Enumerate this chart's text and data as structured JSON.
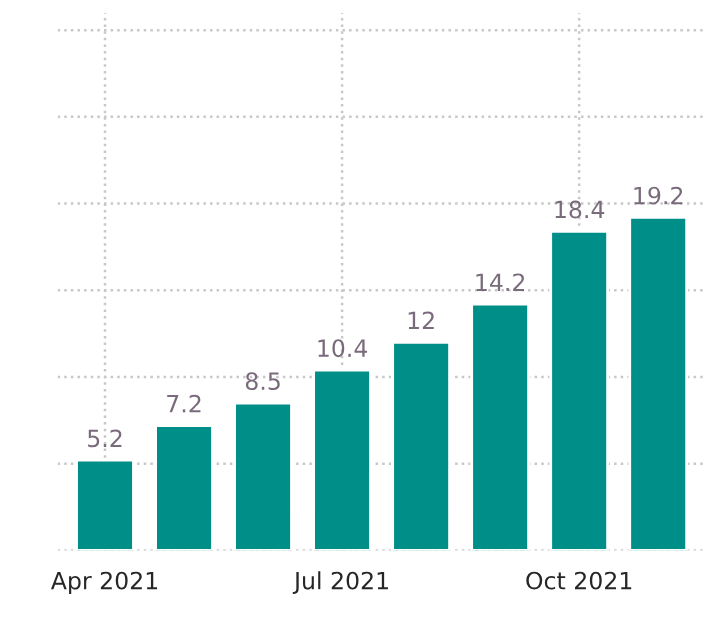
{
  "chart_data": {
    "type": "bar",
    "categories": [
      "Apr 2021",
      null,
      null,
      "Jul 2021",
      null,
      null,
      "Oct 2021",
      null
    ],
    "values": [
      5.2,
      7.2,
      8.5,
      10.4,
      12,
      14.2,
      18.4,
      19.2
    ],
    "color": "#008f88",
    "data_labels": true,
    "ylim": [
      0,
      31
    ],
    "yticks": [
      {
        "value": 0,
        "label": null
      },
      {
        "value": 5,
        "label": null
      },
      {
        "value": 10,
        "label": null
      },
      {
        "value": 15,
        "label": null
      },
      {
        "value": 20,
        "label": null
      },
      {
        "value": 25,
        "label": null
      },
      {
        "value": 30,
        "label": null
      }
    ],
    "tick_labels": "x",
    "grid": true
  }
}
